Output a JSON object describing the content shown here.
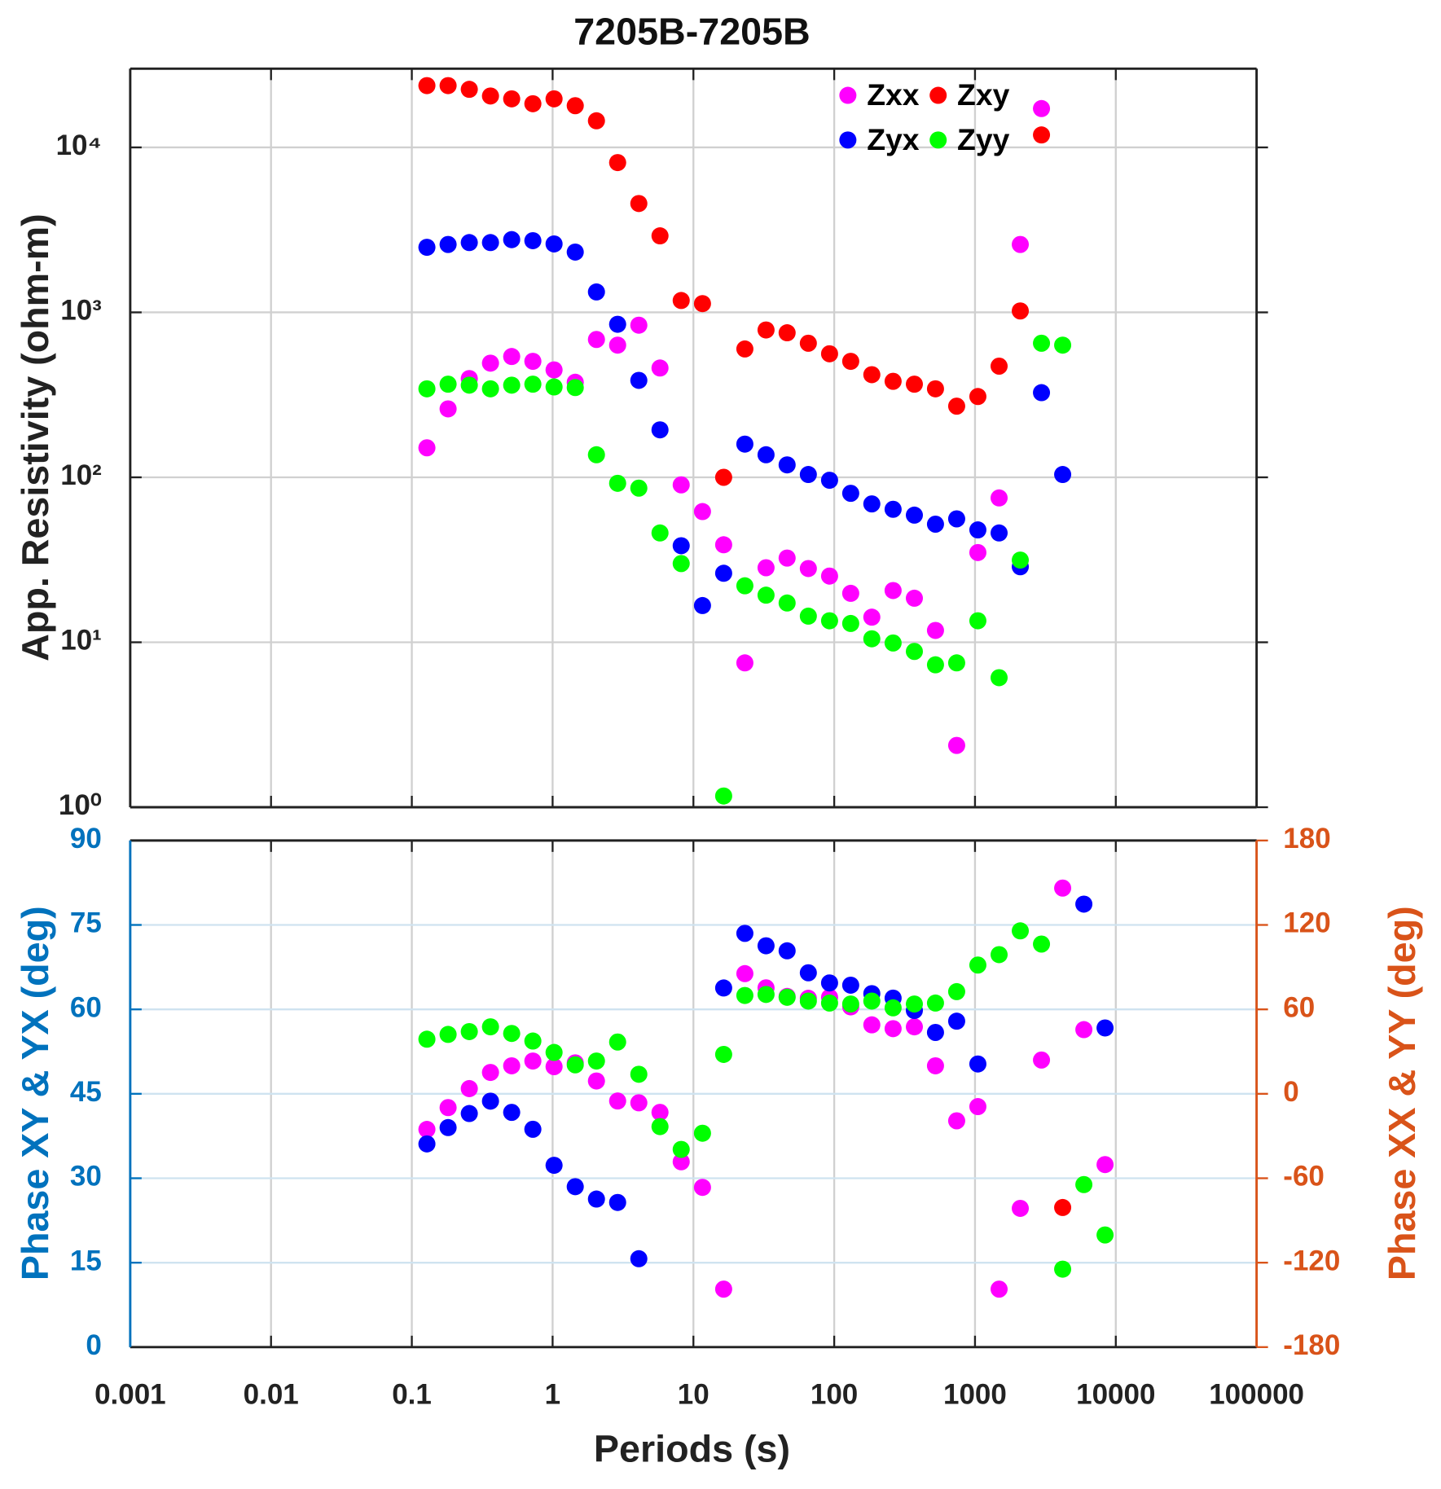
{
  "chart_data": [
    {
      "type": "scatter",
      "title": "7205B-7205B",
      "y_label": "App. Resistivity (ohm-m)",
      "xlog": true,
      "ylog": true,
      "grid": true,
      "legend": "upper right",
      "xlim": [
        0.001,
        100000
      ],
      "xticks": [
        0.001,
        0.01,
        0.1,
        1,
        10,
        100,
        1000,
        10000,
        100000
      ],
      "ylim": [
        1,
        30000
      ],
      "yticks": [
        {
          "value": 1,
          "label": "10⁰"
        },
        {
          "value": 10,
          "label": "10¹"
        },
        {
          "value": 100,
          "label": "10²"
        },
        {
          "value": 1000,
          "label": "10³"
        },
        {
          "value": 10000,
          "label": "10⁴"
        }
      ],
      "x": [
        0.128,
        0.181,
        0.256,
        0.362,
        0.512,
        0.724,
        1.024,
        1.448,
        2.048,
        2.896,
        4.096,
        5.79,
        8.19,
        11.6,
        16.4,
        23.2,
        32.8,
        46.3,
        65.5,
        92.7,
        131,
        185,
        262,
        371,
        524,
        741,
        1048,
        1483,
        2097,
        2966,
        4194,
        5932,
        8389
      ],
      "series": [
        {
          "name": "Zxx",
          "color": "#ff00ff",
          "values": [
            151,
            260,
            397,
            492,
            540,
            505,
            448,
            377,
            685,
            633,
            836,
            460,
            90,
            62,
            39,
            7.5,
            28.3,
            32.4,
            28,
            25.2,
            19.8,
            14.2,
            20.6,
            18.5,
            11.8,
            2.37,
            35,
            75,
            2580,
            17200,
            null,
            null,
            null
          ]
        },
        {
          "name": "Zxy",
          "color": "#ff0000",
          "values": [
            23700,
            23700,
            22500,
            20500,
            19700,
            18400,
            19700,
            17900,
            14500,
            8090,
            4570,
            2910,
            1180,
            1130,
            100,
            600,
            782,
            752,
            650,
            561,
            505,
            419,
            382,
            367,
            344,
            270,
            309,
            472,
            1020,
            11900,
            null,
            null,
            null
          ]
        },
        {
          "name": "Zyx",
          "color": "#0000ff",
          "values": [
            2480,
            2580,
            2650,
            2650,
            2760,
            2720,
            2600,
            2320,
            1330,
            847,
            387,
            194,
            38.5,
            16.7,
            26.2,
            159,
            137,
            119,
            104,
            96,
            80,
            69,
            64,
            59,
            52,
            56,
            48,
            46,
            28.7,
            326,
            104,
            null,
            null
          ]
        },
        {
          "name": "Zyy",
          "color": "#00ff00",
          "values": [
            344,
            367,
            362,
            344,
            362,
            367,
            353,
            350,
            137,
            92,
            86,
            46,
            30,
            null,
            1.17,
            22,
            19.3,
            17.3,
            14.4,
            13.5,
            13,
            10.5,
            9.9,
            8.8,
            7.3,
            7.5,
            13.5,
            6.1,
            31.5,
            650,
            633,
            null,
            null
          ]
        }
      ]
    },
    {
      "type": "scatter",
      "x_label": "Periods (s)",
      "y_label": "Phase XY & YX (deg)",
      "y2_label": "Phase XX & YY (deg)",
      "xlog": true,
      "grid": true,
      "xlim": [
        0.001,
        100000
      ],
      "xticks": [
        0.001,
        0.01,
        0.1,
        1,
        10,
        100,
        1000,
        10000,
        100000
      ],
      "ylim": [
        0,
        90
      ],
      "yticks": [
        0,
        15,
        30,
        45,
        60,
        75,
        90
      ],
      "y2lim": [
        -180,
        180
      ],
      "y2ticks": [
        -180,
        -120,
        -60,
        0,
        60,
        120,
        180
      ],
      "y_color": "#0072bd",
      "y2_color": "#d95319",
      "x": [
        0.128,
        0.181,
        0.256,
        0.362,
        0.512,
        0.724,
        1.024,
        1.448,
        2.048,
        2.896,
        4.096,
        5.79,
        8.19,
        11.6,
        16.4,
        23.2,
        32.8,
        46.3,
        65.5,
        92.7,
        131,
        185,
        262,
        371,
        524,
        741,
        1048,
        1483,
        2097,
        2966,
        4194,
        5932,
        8389
      ],
      "series": [
        {
          "color": "#ff00ff",
          "axis": "y2",
          "values": [
            -25.3,
            -9.8,
            3.7,
            15.2,
            19.9,
            23.3,
            19.3,
            22,
            9.1,
            -5.1,
            -6.4,
            -13.2,
            -48.3,
            -66.5,
            -138.8,
            85.4,
            75.3,
            69.2,
            67.9,
            68.6,
            61.8,
            49,
            46.3,
            47.6,
            19.9,
            -19.2,
            -9.1,
            -138.8,
            -81.4,
            24,
            146.2,
            45.6,
            -50.3
          ]
        },
        {
          "color": "#ff0000",
          "values": [
            null,
            null,
            null,
            null,
            null,
            null,
            null,
            null,
            null,
            null,
            null,
            null,
            null,
            null,
            null,
            null,
            null,
            null,
            null,
            null,
            null,
            null,
            null,
            null,
            null,
            null,
            null,
            null,
            null,
            null,
            24.8,
            null,
            null
          ]
        },
        {
          "color": "#0000ff",
          "values": [
            36.1,
            39,
            41.5,
            43.7,
            41.7,
            38.7,
            32.3,
            28.5,
            26.3,
            25.7,
            15.7,
            null,
            null,
            null,
            63.8,
            73.5,
            71.3,
            70.4,
            66.5,
            64.7,
            64.3,
            62.8,
            62,
            59.8,
            55.9,
            57.9,
            50.3,
            null,
            null,
            null,
            null,
            78.7,
            56.7
          ]
        },
        {
          "color": "#00ff00",
          "axis": "y2",
          "values": [
            38.8,
            42.2,
            44.2,
            47.6,
            42.9,
            37.5,
            29.4,
            20.6,
            23.3,
            36.8,
            13.9,
            -23.3,
            -39.5,
            -28,
            28,
            69.9,
            70.6,
            68.6,
            65.9,
            64.5,
            63.8,
            65.9,
            61.1,
            63.8,
            64.5,
            72.6,
            91.5,
            98.9,
            115.8,
            106.4,
            -124.6,
            -64.5,
            -100.3
          ]
        }
      ]
    }
  ]
}
